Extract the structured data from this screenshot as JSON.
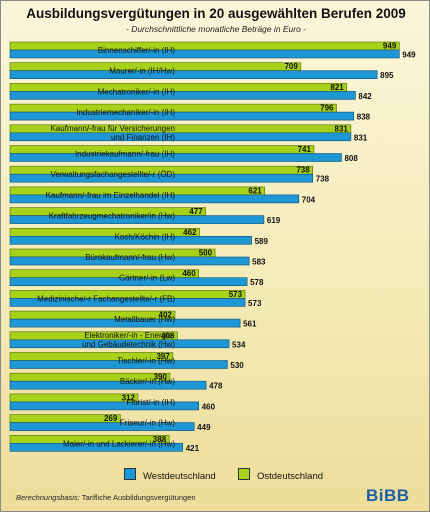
{
  "chart_data": {
    "type": "bar",
    "orientation": "horizontal",
    "title": "Ausbildungsvergütungen in 20 ausgewählten Berufen 2009",
    "subtitle": "- Durchschnittliche monatliche Beträge in Euro -",
    "categories": [
      [
        "Binnenschiffer/-in (IH)"
      ],
      [
        "Maurer/-in (IH/Hw)"
      ],
      [
        "Mechatroniker/-in (IH)"
      ],
      [
        "Industriemechaniker/-in (IH)"
      ],
      [
        "Kaufmann/-frau für Versicherungen",
        "und Finanzen (IH)"
      ],
      [
        "Industriekaufmann/-frau (IH)"
      ],
      [
        "Verwaltungsfachangestellte/-r (ÖD)"
      ],
      [
        "Kaufmann/-frau im Einzelhandel (IH)"
      ],
      [
        "Kraftfahrzeugmechatroniker/in (Hw)"
      ],
      [
        "Koch/Köchin (IH)"
      ],
      [
        "Bürokaufmann/-frau (Hw)"
      ],
      [
        "Gärtner/-in (Lw)"
      ],
      [
        "Medizinische/-r Fachangestellte/-r (FB)"
      ],
      [
        "Metallbauer (Hw)"
      ],
      [
        "Elektroniker/-in - Energie-",
        "und Gebäudetechnik (Hw)"
      ],
      [
        "Tischler/-in (Hw)"
      ],
      [
        "Bäcker/-in (Hw)"
      ],
      [
        "Florist/-in (IH)"
      ],
      [
        "Friseur/-in (Hw)"
      ],
      [
        "Maler/-in und Lackierer/-in (Hw)"
      ]
    ],
    "series": [
      {
        "name": "Westdeutschland",
        "color": "#1f97d4",
        "values": [
          949,
          895,
          842,
          838,
          831,
          808,
          738,
          704,
          619,
          589,
          583,
          578,
          573,
          561,
          534,
          530,
          478,
          460,
          449,
          421
        ]
      },
      {
        "name": "Ostdeutschland",
        "color": "#a8d21a",
        "values": [
          949,
          709,
          821,
          796,
          831,
          741,
          738,
          621,
          477,
          462,
          500,
          460,
          573,
          402,
          408,
          397,
          390,
          312,
          269,
          388
        ]
      }
    ],
    "xlim": [
      0,
      980
    ],
    "legend_position": "bottom"
  },
  "footer": {
    "basis_label": "Berechnungsbasis:",
    "basis_text": "Tarifliche Ausbildungsvergütungen"
  },
  "logo": "BiBB"
}
